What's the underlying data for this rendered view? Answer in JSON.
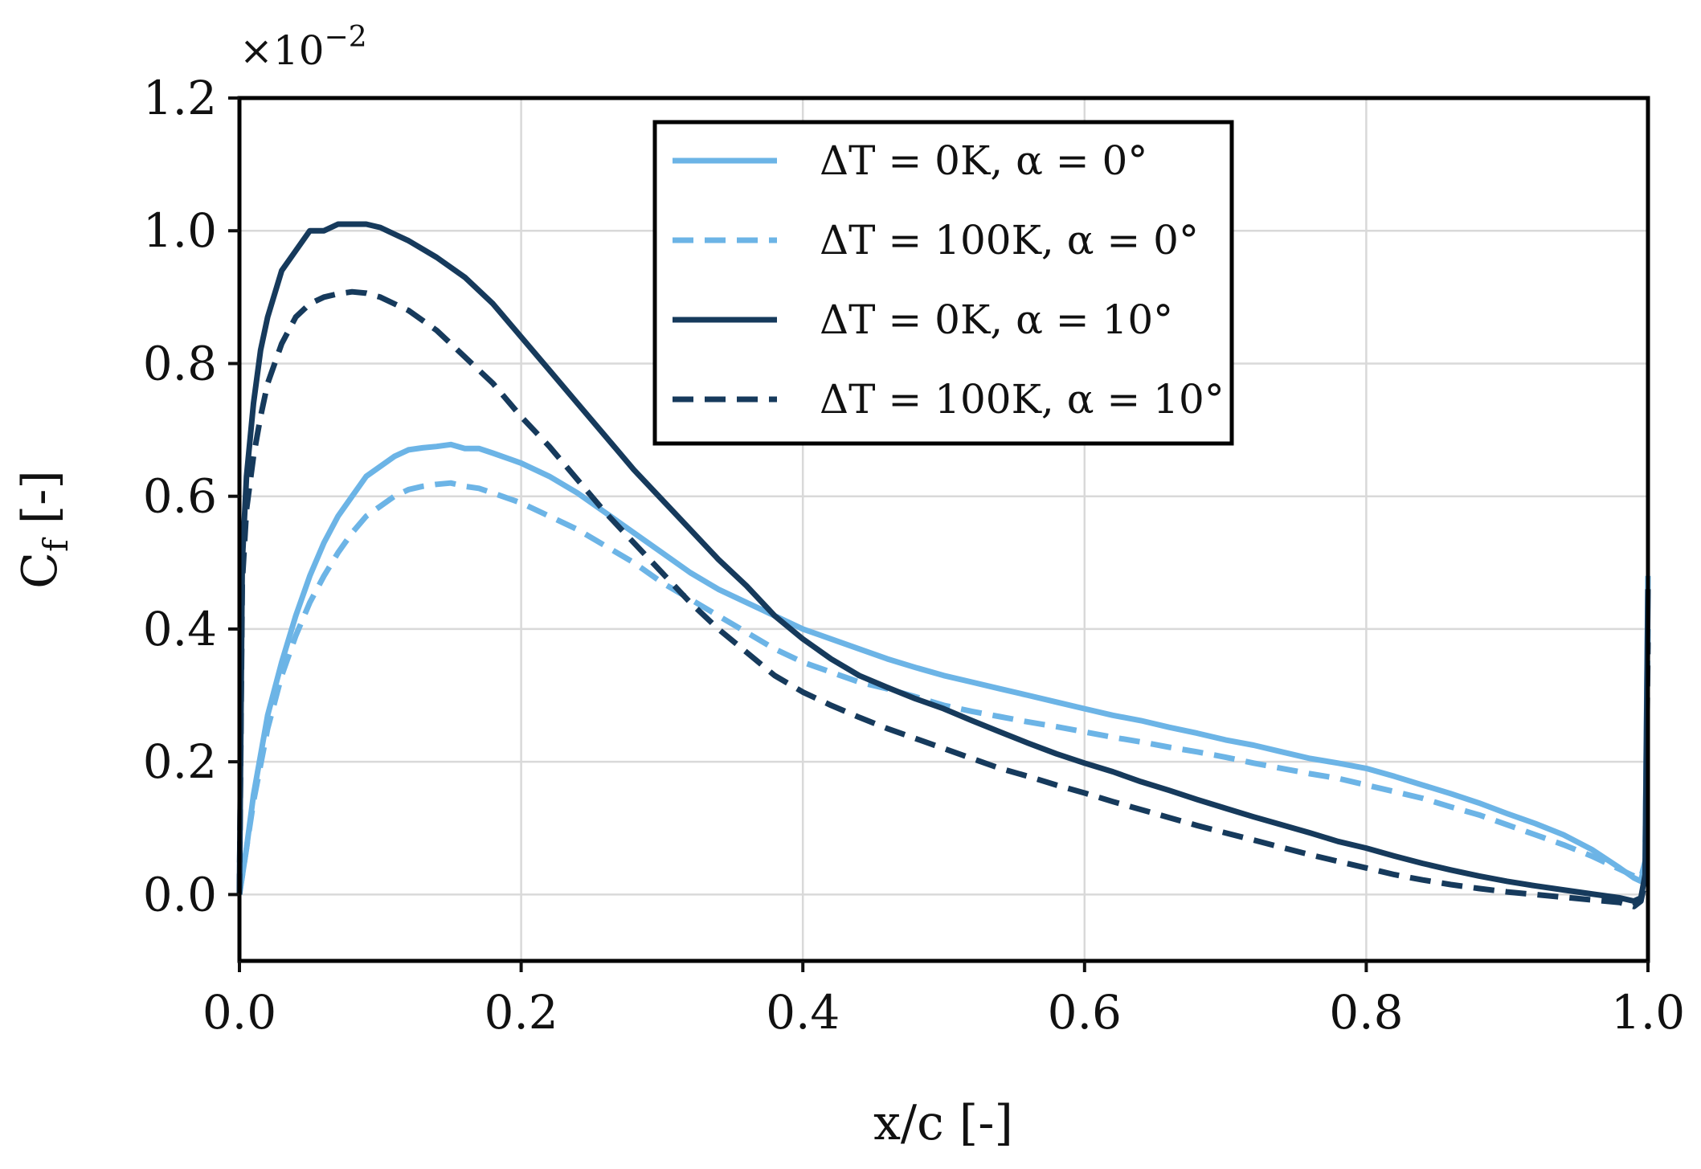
{
  "chart_data": {
    "type": "line",
    "title": "",
    "xlabel": "x/c [-]",
    "ylabel": "C",
    "ylabel_subscript": "f",
    "ylabel_suffix": " [-]",
    "y_scale_label": "×10",
    "y_scale_exponent": "−2",
    "xlim": [
      0.0,
      1.0
    ],
    "ylim": [
      -0.1,
      1.2
    ],
    "x_ticks": [
      0.0,
      0.2,
      0.4,
      0.6,
      0.8,
      1.0
    ],
    "x_tick_labels": [
      "0.0",
      "0.2",
      "0.4",
      "0.6",
      "0.8",
      "1.0"
    ],
    "y_ticks": [
      0.0,
      0.2,
      0.4,
      0.6,
      0.8,
      1.0,
      1.2
    ],
    "y_tick_labels": [
      "0.0",
      "0.2",
      "0.4",
      "0.6",
      "0.8",
      "1.0",
      "1.2"
    ],
    "grid": true,
    "legend_position": "top-center",
    "series": [
      {
        "name": "ΔT = 0K, α = 0°",
        "color": "#6cb4e6",
        "dash": "solid",
        "x": [
          0,
          0.005,
          0.01,
          0.02,
          0.03,
          0.04,
          0.05,
          0.06,
          0.07,
          0.08,
          0.09,
          0.1,
          0.11,
          0.12,
          0.13,
          0.14,
          0.15,
          0.16,
          0.17,
          0.18,
          0.2,
          0.22,
          0.24,
          0.26,
          0.28,
          0.3,
          0.32,
          0.34,
          0.36,
          0.38,
          0.4,
          0.42,
          0.44,
          0.46,
          0.48,
          0.5,
          0.52,
          0.54,
          0.56,
          0.58,
          0.6,
          0.62,
          0.64,
          0.66,
          0.68,
          0.7,
          0.72,
          0.74,
          0.76,
          0.78,
          0.8,
          0.82,
          0.84,
          0.86,
          0.88,
          0.9,
          0.92,
          0.94,
          0.96,
          0.98,
          0.99,
          0.995,
          0.998,
          1.0
        ],
        "y": [
          0.0,
          0.07,
          0.15,
          0.27,
          0.35,
          0.42,
          0.48,
          0.53,
          0.57,
          0.6,
          0.63,
          0.645,
          0.66,
          0.67,
          0.673,
          0.675,
          0.678,
          0.672,
          0.672,
          0.665,
          0.65,
          0.63,
          0.605,
          0.575,
          0.545,
          0.515,
          0.485,
          0.46,
          0.44,
          0.42,
          0.4,
          0.385,
          0.37,
          0.355,
          0.342,
          0.33,
          0.32,
          0.31,
          0.3,
          0.29,
          0.28,
          0.27,
          0.262,
          0.252,
          0.243,
          0.233,
          0.225,
          0.215,
          0.205,
          0.198,
          0.19,
          0.178,
          0.165,
          0.152,
          0.138,
          0.122,
          0.107,
          0.09,
          0.068,
          0.04,
          0.025,
          0.02,
          0.05,
          0.48
        ]
      },
      {
        "name": "ΔT = 100K, α = 0°",
        "color": "#6cb4e6",
        "dash": "dashed",
        "x": [
          0,
          0.005,
          0.01,
          0.02,
          0.03,
          0.04,
          0.05,
          0.06,
          0.07,
          0.08,
          0.09,
          0.1,
          0.11,
          0.12,
          0.13,
          0.14,
          0.15,
          0.16,
          0.17,
          0.18,
          0.2,
          0.22,
          0.24,
          0.26,
          0.28,
          0.3,
          0.32,
          0.34,
          0.36,
          0.38,
          0.4,
          0.42,
          0.44,
          0.46,
          0.48,
          0.5,
          0.52,
          0.54,
          0.56,
          0.58,
          0.6,
          0.62,
          0.64,
          0.66,
          0.68,
          0.7,
          0.72,
          0.74,
          0.76,
          0.78,
          0.8,
          0.82,
          0.84,
          0.86,
          0.88,
          0.9,
          0.92,
          0.94,
          0.96,
          0.98,
          0.99,
          0.995,
          0.998,
          1.0
        ],
        "y": [
          0.0,
          0.07,
          0.14,
          0.25,
          0.33,
          0.39,
          0.44,
          0.48,
          0.515,
          0.545,
          0.57,
          0.585,
          0.6,
          0.61,
          0.615,
          0.618,
          0.62,
          0.615,
          0.612,
          0.605,
          0.59,
          0.57,
          0.55,
          0.525,
          0.5,
          0.47,
          0.445,
          0.42,
          0.395,
          0.37,
          0.35,
          0.335,
          0.32,
          0.31,
          0.298,
          0.285,
          0.276,
          0.268,
          0.26,
          0.253,
          0.245,
          0.237,
          0.23,
          0.222,
          0.215,
          0.207,
          0.198,
          0.19,
          0.182,
          0.175,
          0.165,
          0.155,
          0.145,
          0.132,
          0.12,
          0.105,
          0.09,
          0.075,
          0.058,
          0.038,
          0.028,
          0.025,
          0.05,
          0.4
        ]
      },
      {
        "name": "ΔT = 0K, α = 10°",
        "color": "#163a5c",
        "dash": "solid",
        "x": [
          0,
          0.002,
          0.005,
          0.01,
          0.015,
          0.02,
          0.03,
          0.04,
          0.05,
          0.06,
          0.07,
          0.08,
          0.09,
          0.1,
          0.11,
          0.12,
          0.14,
          0.16,
          0.18,
          0.2,
          0.22,
          0.24,
          0.26,
          0.28,
          0.3,
          0.32,
          0.34,
          0.36,
          0.38,
          0.4,
          0.42,
          0.44,
          0.46,
          0.48,
          0.5,
          0.52,
          0.54,
          0.56,
          0.58,
          0.6,
          0.62,
          0.64,
          0.66,
          0.68,
          0.7,
          0.72,
          0.74,
          0.76,
          0.78,
          0.8,
          0.82,
          0.84,
          0.86,
          0.88,
          0.9,
          0.92,
          0.94,
          0.96,
          0.98,
          0.99,
          0.995,
          0.998,
          1.0
        ],
        "y": [
          0.0,
          0.5,
          0.63,
          0.74,
          0.82,
          0.87,
          0.94,
          0.97,
          1.0,
          1.0,
          1.01,
          1.01,
          1.01,
          1.005,
          0.995,
          0.985,
          0.96,
          0.93,
          0.89,
          0.84,
          0.79,
          0.74,
          0.69,
          0.64,
          0.595,
          0.55,
          0.505,
          0.465,
          0.42,
          0.385,
          0.355,
          0.33,
          0.312,
          0.295,
          0.28,
          0.262,
          0.245,
          0.228,
          0.212,
          0.198,
          0.185,
          0.17,
          0.157,
          0.143,
          0.13,
          0.117,
          0.105,
          0.093,
          0.08,
          0.07,
          0.058,
          0.047,
          0.037,
          0.028,
          0.02,
          0.013,
          0.007,
          0.001,
          -0.005,
          -0.01,
          -0.005,
          0.03,
          0.46
        ]
      },
      {
        "name": "ΔT = 100K, α = 10°",
        "color": "#163a5c",
        "dash": "dashed",
        "x": [
          0,
          0.002,
          0.005,
          0.01,
          0.015,
          0.02,
          0.03,
          0.04,
          0.05,
          0.06,
          0.07,
          0.08,
          0.09,
          0.1,
          0.11,
          0.12,
          0.14,
          0.16,
          0.18,
          0.2,
          0.22,
          0.24,
          0.26,
          0.28,
          0.3,
          0.32,
          0.34,
          0.36,
          0.38,
          0.4,
          0.42,
          0.44,
          0.46,
          0.48,
          0.5,
          0.52,
          0.54,
          0.56,
          0.58,
          0.6,
          0.62,
          0.64,
          0.66,
          0.68,
          0.7,
          0.72,
          0.74,
          0.76,
          0.78,
          0.8,
          0.82,
          0.84,
          0.86,
          0.88,
          0.9,
          0.92,
          0.94,
          0.96,
          0.98,
          0.99,
          0.995,
          0.998,
          1.0
        ],
        "y": [
          0.0,
          0.47,
          0.58,
          0.66,
          0.72,
          0.77,
          0.83,
          0.87,
          0.89,
          0.9,
          0.905,
          0.908,
          0.906,
          0.9,
          0.89,
          0.88,
          0.85,
          0.81,
          0.77,
          0.72,
          0.675,
          0.625,
          0.575,
          0.53,
          0.485,
          0.44,
          0.4,
          0.365,
          0.33,
          0.305,
          0.285,
          0.267,
          0.25,
          0.235,
          0.22,
          0.205,
          0.19,
          0.178,
          0.165,
          0.153,
          0.14,
          0.128,
          0.116,
          0.104,
          0.093,
          0.082,
          0.071,
          0.06,
          0.05,
          0.04,
          0.03,
          0.022,
          0.015,
          0.009,
          0.004,
          0.0,
          -0.004,
          -0.008,
          -0.012,
          -0.018,
          -0.01,
          0.02,
          0.38
        ]
      }
    ]
  }
}
